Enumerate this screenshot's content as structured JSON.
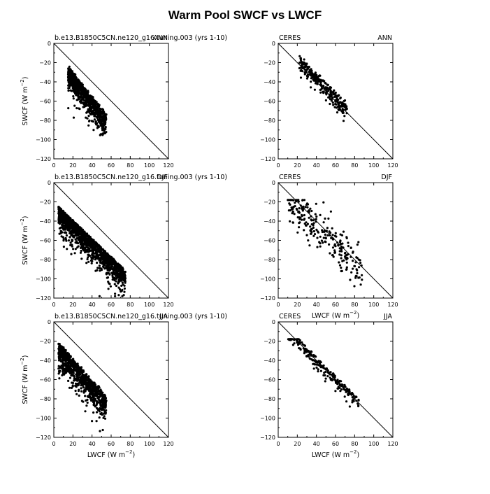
{
  "title": "Warm Pool SWCF vs LWCF",
  "chart_data": [
    {
      "type": "scatter",
      "left_label": "b.e13.B1850C5CN.ne120_g16.tuning.003 (yrs 1-10)",
      "right_label": "ANN",
      "xlabel": "",
      "ylabel": "SWCF (W m^-2)",
      "xlim": [
        0,
        120
      ],
      "ylim": [
        -120,
        0
      ],
      "xticks": [
        0,
        20,
        40,
        60,
        80,
        100,
        120
      ],
      "yticks": [
        0,
        -20,
        -40,
        -60,
        -80,
        -100,
        -120
      ],
      "reference_line": [
        [
          0,
          0
        ],
        [
          120,
          -120
        ]
      ],
      "points": {
        "count": 900,
        "x_range": [
          15,
          70
        ],
        "y_range": [
          -120,
          -22
        ],
        "cluster": "dense band below 1:1 line, x 15-50, y -25 to -75"
      }
    },
    {
      "type": "scatter",
      "left_label": "CERES",
      "right_label": "ANN",
      "xlabel": "",
      "ylabel": "",
      "xlim": [
        0,
        120
      ],
      "ylim": [
        -120,
        0
      ],
      "xticks": [
        0,
        20,
        40,
        60,
        80,
        100,
        120
      ],
      "yticks": [
        0,
        -20,
        -40,
        -60,
        -80,
        -100,
        -120
      ],
      "reference_line": [
        [
          0,
          0
        ],
        [
          120,
          -120
        ]
      ],
      "points": {
        "count": 260,
        "x_range": [
          22,
          72
        ],
        "y_range": [
          -90,
          -27
        ],
        "cluster": "band along 1:1 line"
      }
    },
    {
      "type": "scatter",
      "left_label": "b.e13.B1850C5CN.ne120_g16.tuning.003 (yrs 1-10)",
      "right_label": "DJF",
      "xlabel": "",
      "ylabel": "SWCF (W m^-2)",
      "xlim": [
        0,
        120
      ],
      "ylim": [
        -120,
        0
      ],
      "xticks": [
        0,
        20,
        40,
        60,
        80,
        100,
        120
      ],
      "yticks": [
        0,
        -20,
        -40,
        -60,
        -80,
        -100,
        -120
      ],
      "reference_line": [
        [
          0,
          0
        ],
        [
          120,
          -120
        ]
      ],
      "points": {
        "count": 1400,
        "x_range": [
          5,
          75
        ],
        "y_range": [
          -118,
          -20
        ],
        "cluster": "wide band from (5,-20) to (75,-100)"
      }
    },
    {
      "type": "scatter",
      "left_label": "CERES",
      "right_label": "DJF",
      "xlabel": "LWCF (W m^-2)",
      "ylabel": "",
      "xlim": [
        0,
        120
      ],
      "ylim": [
        -120,
        0
      ],
      "xticks": [
        0,
        20,
        40,
        60,
        80,
        100,
        120
      ],
      "yticks": [
        0,
        -20,
        -40,
        -60,
        -80,
        -100,
        -120
      ],
      "reference_line": [
        [
          0,
          0
        ],
        [
          120,
          -120
        ]
      ],
      "points": {
        "count": 250,
        "x_range": [
          10,
          88
        ],
        "y_range": [
          -110,
          -18
        ],
        "cluster": "band along 1:1 line, scattered"
      }
    },
    {
      "type": "scatter",
      "left_label": "b.e13.B1850C5CN.ne120_g16.tuning.003 (yrs 1-10)",
      "right_label": "JJA",
      "xlabel": "LWCF (W m^-2)",
      "ylabel": "SWCF (W m^-2)",
      "xlim": [
        0,
        120
      ],
      "ylim": [
        -120,
        0
      ],
      "xticks": [
        0,
        20,
        40,
        60,
        80,
        100,
        120
      ],
      "yticks": [
        0,
        -20,
        -40,
        -60,
        -80,
        -100,
        -120
      ],
      "reference_line": [
        [
          0,
          0
        ],
        [
          120,
          -120
        ]
      ],
      "points": {
        "count": 900,
        "x_range": [
          5,
          62
        ],
        "y_range": [
          -117,
          -15
        ],
        "cluster": "dense band x 10-55, y -20 to -80"
      }
    },
    {
      "type": "scatter",
      "left_label": "CERES",
      "right_label": "JJA",
      "xlabel": "LWCF (W m^-2)",
      "ylabel": "",
      "xlim": [
        0,
        120
      ],
      "ylim": [
        -120,
        0
      ],
      "xticks": [
        0,
        20,
        40,
        60,
        80,
        100,
        120
      ],
      "yticks": [
        0,
        -20,
        -40,
        -60,
        -80,
        -100,
        -120
      ],
      "reference_line": [
        [
          0,
          0
        ],
        [
          120,
          -120
        ]
      ],
      "points": {
        "count": 220,
        "x_range": [
          10,
          85
        ],
        "y_range": [
          -97,
          -18
        ],
        "cluster": "band along 1:1 line"
      }
    }
  ]
}
